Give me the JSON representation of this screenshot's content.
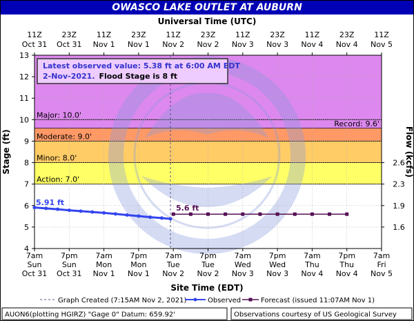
{
  "title": "OWASCO LAKE OUTLET AT AUBURN",
  "top_axis_title": "Universal Time (UTC)",
  "bottom_axis_title": "Site Time (EDT)",
  "left_axis_title": "Stage (ft)",
  "right_axis_title": "Flow (kcfs)",
  "annotation": {
    "line1": "Latest observed value: 5.38 ft at 6:00 AM EDT",
    "line2_date": "2-Nov-2021.",
    "line2_flood": "Flood Stage is 8 ft"
  },
  "labels": {
    "first_obs": "5.91 ft",
    "forecast_value": "5.6 ft"
  },
  "legend": {
    "created": "Graph Created (7:15AM Nov 2, 2021)",
    "observed": "Observed",
    "forecast": "Forecast (issued 11:07AM Nov 1)"
  },
  "footer": {
    "left": "AUON6(plotting HGIRZ) \"Gage 0\" Datum:  659.92'",
    "right": "Observations courtesy of US Geological Survey"
  },
  "colors": {
    "record_band": "#dd88ee",
    "major_band": "#ff7f7f",
    "moderate_band": "#ff9966",
    "minor_band": "#ffcc66",
    "action_band": "#ffff66",
    "observed": "#3344ee",
    "forecast": "#551155",
    "banner": "#0000b4"
  },
  "chart_data": {
    "type": "line",
    "xlim_hours_from_start": [
      0,
      120
    ],
    "ylim": [
      4,
      13
    ],
    "yticks": [
      4,
      5,
      6,
      7,
      8,
      9,
      10,
      11,
      12,
      13
    ],
    "bottom_ticks": [
      {
        "hours": 0,
        "line1": "7am",
        "line2": "Sun",
        "line3": "Oct 31"
      },
      {
        "hours": 12,
        "line1": "7pm",
        "line2": "Sun",
        "line3": "Oct 31"
      },
      {
        "hours": 24,
        "line1": "7am",
        "line2": "Mon",
        "line3": "Nov 1"
      },
      {
        "hours": 36,
        "line1": "7pm",
        "line2": "Mon",
        "line3": "Nov 1"
      },
      {
        "hours": 48,
        "line1": "7am",
        "line2": "Tue",
        "line3": "Nov 2"
      },
      {
        "hours": 60,
        "line1": "7pm",
        "line2": "Tue",
        "line3": "Nov 2"
      },
      {
        "hours": 72,
        "line1": "7am",
        "line2": "Wed",
        "line3": "Nov 3"
      },
      {
        "hours": 84,
        "line1": "7pm",
        "line2": "Wed",
        "line3": "Nov 3"
      },
      {
        "hours": 96,
        "line1": "7am",
        "line2": "Thu",
        "line3": "Nov 4"
      },
      {
        "hours": 108,
        "line1": "7pm",
        "line2": "Thu",
        "line3": "Nov 4"
      },
      {
        "hours": 120,
        "line1": "7am",
        "line2": "Fri",
        "line3": "Nov 5"
      }
    ],
    "top_ticks": [
      {
        "hours": 0,
        "line1": "11Z",
        "line2": "Oct 31"
      },
      {
        "hours": 12,
        "line1": "23Z",
        "line2": "Oct 31"
      },
      {
        "hours": 24,
        "line1": "11Z",
        "line2": "Nov 1"
      },
      {
        "hours": 36,
        "line1": "23Z",
        "line2": "Nov 1"
      },
      {
        "hours": 48,
        "line1": "11Z",
        "line2": "Nov 2"
      },
      {
        "hours": 60,
        "line1": "23Z",
        "line2": "Nov 2"
      },
      {
        "hours": 72,
        "line1": "11Z",
        "line2": "Nov 3"
      },
      {
        "hours": 84,
        "line1": "23Z",
        "line2": "Nov 3"
      },
      {
        "hours": 96,
        "line1": "11Z",
        "line2": "Nov 4"
      },
      {
        "hours": 108,
        "line1": "23Z",
        "line2": "Nov 4"
      },
      {
        "hours": 120,
        "line1": "11Z",
        "line2": "Nov 5"
      }
    ],
    "right_axis": [
      {
        "stage": 5,
        "label": "1.6"
      },
      {
        "stage": 6,
        "label": "1.9"
      },
      {
        "stage": 7,
        "label": "2.3"
      },
      {
        "stage": 8,
        "label": "2.6"
      }
    ],
    "flood_categories": [
      {
        "name": "Action",
        "label": "Action: 7.0'",
        "from": 7.0,
        "to": 8.0
      },
      {
        "name": "Minor",
        "label": "Minor: 8.0'",
        "from": 8.0,
        "to": 9.0
      },
      {
        "name": "Moderate",
        "label": "Moderate: 9.0'",
        "from": 9.0,
        "to": 10.0
      },
      {
        "name": "Major",
        "label": "Major: 10.0'",
        "from": 10.0,
        "to": 13.0
      }
    ],
    "record": {
      "label": "Record: 9.6'",
      "value": 9.6
    },
    "graph_created_hours": 47,
    "observed": {
      "name": "Observed",
      "x_hours": [
        0,
        4,
        8,
        12,
        16,
        20,
        24,
        28,
        32,
        36,
        40,
        44,
        47
      ],
      "y": [
        5.91,
        5.87,
        5.83,
        5.78,
        5.74,
        5.7,
        5.66,
        5.61,
        5.56,
        5.51,
        5.46,
        5.42,
        5.38
      ]
    },
    "forecast": {
      "name": "Forecast (issued 11:07AM Nov 1)",
      "x_hours": [
        48,
        54,
        60,
        66,
        72,
        78,
        84,
        90,
        96,
        102,
        108
      ],
      "y": [
        5.6,
        5.6,
        5.6,
        5.6,
        5.6,
        5.6,
        5.6,
        5.6,
        5.6,
        5.6,
        5.6
      ]
    }
  }
}
